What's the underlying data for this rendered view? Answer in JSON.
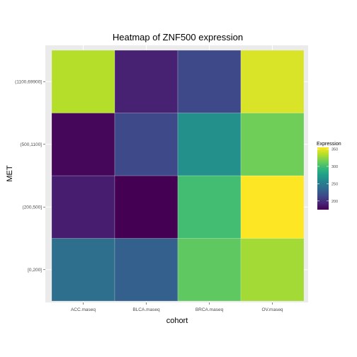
{
  "chart_data": {
    "type": "heatmap",
    "title": "Heatmap of ZNF500 expression",
    "xlabel": "cohort",
    "ylabel": "MET",
    "x_categories": [
      "ACC.maseq",
      "BLCA.maseq",
      "BRCA.maseq",
      "OV.maseq"
    ],
    "y_categories": [
      "[0,200]",
      "(200,500]",
      "(500,1100]",
      "(1100,69900]"
    ],
    "values": [
      [
        240,
        230,
        310,
        330
      ],
      [
        190,
        175,
        300,
        355
      ],
      [
        178,
        215,
        265,
        315
      ],
      [
        335,
        192,
        215,
        345
      ]
    ],
    "colorbar": {
      "title": "Expression",
      "min": 175,
      "max": 355,
      "ticks": [
        200,
        250,
        300,
        350
      ],
      "colormap": "viridis"
    },
    "colors": {
      "panel_background": "#ebebeb",
      "grid": "#ffffff"
    }
  }
}
